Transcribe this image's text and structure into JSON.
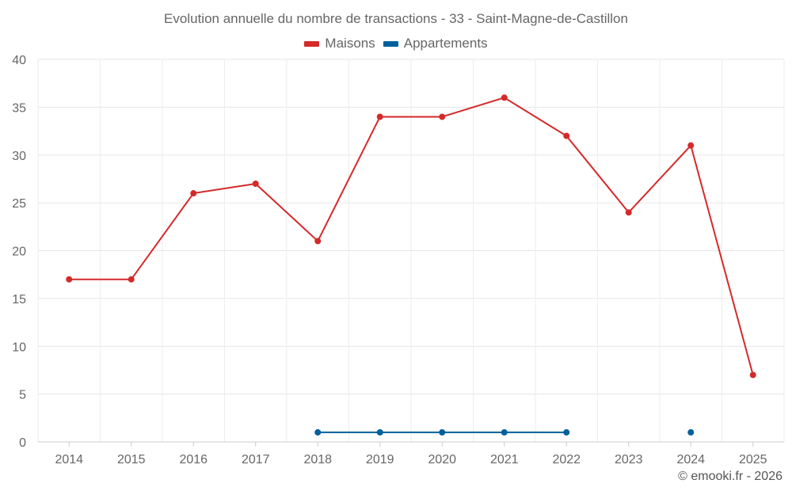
{
  "chart_data": {
    "type": "line",
    "title": "Evolution annuelle du nombre de transactions - 33 - Saint-Magne-de-Castillon",
    "categories": [
      "2014",
      "2015",
      "2016",
      "2017",
      "2018",
      "2019",
      "2020",
      "2021",
      "2022",
      "2023",
      "2024",
      "2025"
    ],
    "series": [
      {
        "name": "Maisons",
        "color": "#d42a2a",
        "values": [
          17,
          17,
          26,
          27,
          21,
          34,
          34,
          36,
          32,
          24,
          31,
          7
        ]
      },
      {
        "name": "Appartements",
        "color": "#00609c",
        "values": [
          null,
          null,
          null,
          null,
          1,
          1,
          1,
          1,
          1,
          null,
          1,
          null
        ]
      }
    ],
    "ylim": [
      0,
      40
    ],
    "yticks": [
      0,
      5,
      10,
      15,
      20,
      25,
      30,
      35,
      40
    ],
    "grid": true,
    "legend_position": "top-center",
    "xlabel": "",
    "ylabel": ""
  },
  "credit": "© emooki.fr - 2026"
}
